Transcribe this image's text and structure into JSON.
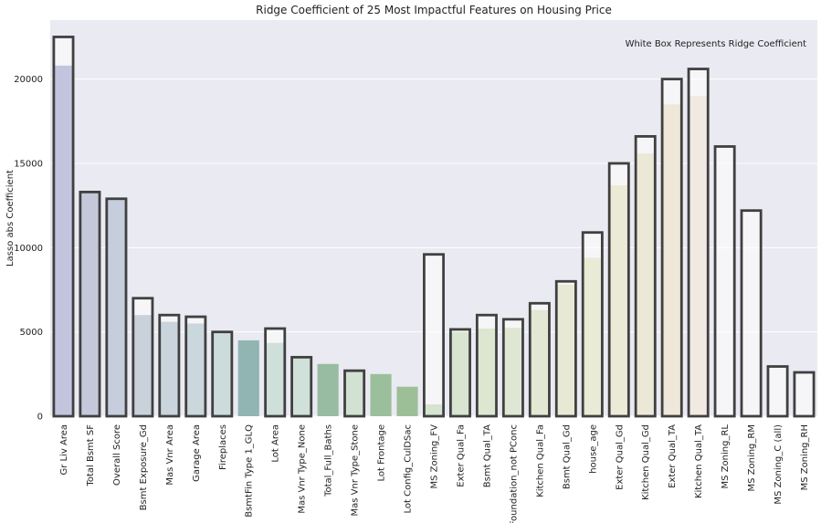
{
  "chart_data": {
    "type": "bar",
    "title": "Ridge Coefficient of 25 Most Impactful Features on Housing Price",
    "ylabel": "Lasso abs Coefficient",
    "xlabel": "",
    "annotation": "White Box Represents Ridge Coefficient",
    "ylim": [
      0,
      23500
    ],
    "yticks": [
      0,
      5000,
      10000,
      15000,
      20000
    ],
    "ytick_labels": [
      "0",
      "5000",
      "10000",
      "15000",
      "20000"
    ],
    "grid": true,
    "categories": [
      "Gr Liv Area",
      "Total Bsmt SF",
      "Overall Score",
      "Bsmt Exposure_Gd",
      "Mas Vnr Area",
      "Garage Area",
      "Fireplaces",
      "BsmtFin Type 1_GLQ",
      "Lot Area",
      "Mas Vnr Type_None",
      "Total_Full_Baths",
      "Mas Vnr Type_Stone",
      "Lot Frontage",
      "Lot Config_CulDSac",
      "MS Zoning_FV",
      "Exter Qual_Fa",
      "Bsmt Qual_TA",
      "Foundation_not PConc",
      "Kitchen Qual_Fa",
      "Bsmt Qual_Gd",
      "house_age",
      "Exter Qual_Gd",
      "Kitchen Qual_Gd",
      "Exter Qual_TA",
      "Kitchen Qual_TA",
      "MS Zoning_RL",
      "MS Zoning_RM",
      "MS Zoning_C (all)",
      "MS Zoning_RH"
    ],
    "series": [
      {
        "values": [
          20800,
          13300,
          12900,
          6000,
          5600,
          5500,
          5000,
          4500,
          4350,
          3500,
          3100,
          2700,
          2500,
          1750,
          700,
          5000,
          5200,
          5250,
          6300,
          7800,
          9400,
          13700,
          15600,
          18500,
          19000,
          0,
          0,
          0,
          0
        ],
        "colors": [
          "#7b7fb5",
          "#7e86af",
          "#8190b2",
          "#8799b0",
          "#88a1b2",
          "#8ba8b3",
          "#8fb0b2",
          "#91b5b2",
          "#95bbb0",
          "#97bcaa",
          "#98bca1",
          "#99be9e",
          "#9bbf9b",
          "#9dbf98",
          "#a2c298",
          "#a9c597",
          "#b1c89a",
          "#b8cb9f",
          "#c2cd9f",
          "#cacf9f",
          "#d1d2a5",
          "#d3d1a6",
          "#d6cca8",
          "#dbc9ad",
          "#e0d0c2",
          "#ffffff",
          "#ffffff",
          "#ffffff",
          "#ffffff"
        ]
      },
      {
        "values": [
          22500,
          13300,
          12900,
          7000,
          6000,
          5900,
          5000,
          0,
          5200,
          3500,
          0,
          2700,
          0,
          0,
          9600,
          5150,
          6000,
          5750,
          6700,
          8000,
          10900,
          15000,
          16600,
          20000,
          20600,
          16000,
          12200,
          2950,
          2600
        ]
      }
    ]
  }
}
